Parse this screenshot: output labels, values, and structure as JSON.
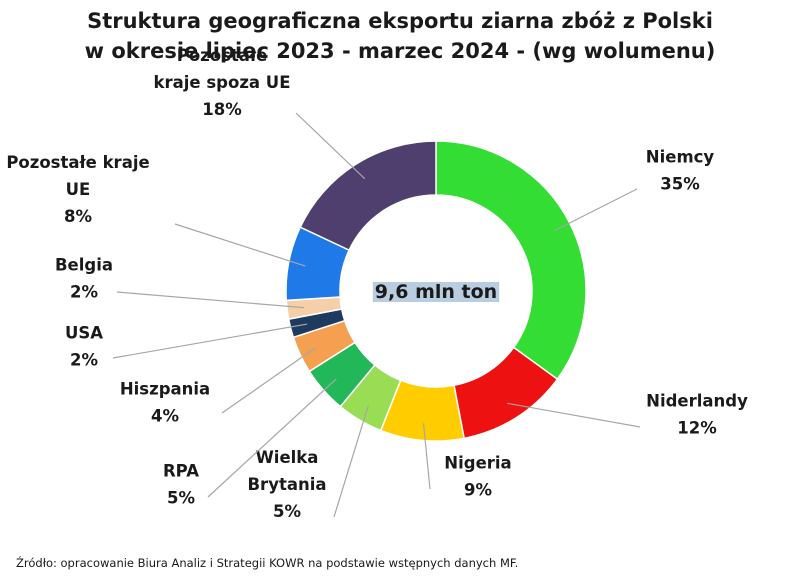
{
  "chart_data": {
    "type": "pie",
    "donut": true,
    "title_lines": [
      "Struktura geograficzna eksportu ziarna zbóż z Polski",
      "w okresie lipiec 2023 - marzec 2024 - (wg wolumenu)"
    ],
    "center_label": "9,6 mln ton",
    "slices": [
      {
        "name_lines": [
          "Niemcy"
        ],
        "label": "35%",
        "value": 35,
        "color": "#33dd33"
      },
      {
        "name_lines": [
          "Niderlandy"
        ],
        "label": "12%",
        "value": 12,
        "color": "#ee1111"
      },
      {
        "name_lines": [
          "Nigeria"
        ],
        "label": "9%",
        "value": 9,
        "color": "#ffcc00"
      },
      {
        "name_lines": [
          "Wielka",
          "Brytania"
        ],
        "label": "5%",
        "value": 5,
        "color": "#99dd55"
      },
      {
        "name_lines": [
          "RPA"
        ],
        "label": "5%",
        "value": 5,
        "color": "#22b85a"
      },
      {
        "name_lines": [
          "Hiszpania"
        ],
        "label": "4%",
        "value": 4,
        "color": "#f5a050"
      },
      {
        "name_lines": [
          "USA"
        ],
        "label": "2%",
        "value": 2,
        "color": "#1f3a5f"
      },
      {
        "name_lines": [
          "Belgia"
        ],
        "label": "2%",
        "value": 2,
        "color": "#f5cfa8"
      },
      {
        "name_lines": [
          "Pozostałe kraje",
          "UE"
        ],
        "label": "8%",
        "value": 8,
        "color": "#1f7ae8"
      },
      {
        "name_lines": [
          "Pozostałe",
          "kraje spoza UE"
        ],
        "label": "18%",
        "value": 18,
        "color": "#4e3f6f"
      }
    ]
  },
  "source_note": "Źródło: opracowanie Biura Analiz i Strategii KOWR na podstawie wstępnych danych MF."
}
